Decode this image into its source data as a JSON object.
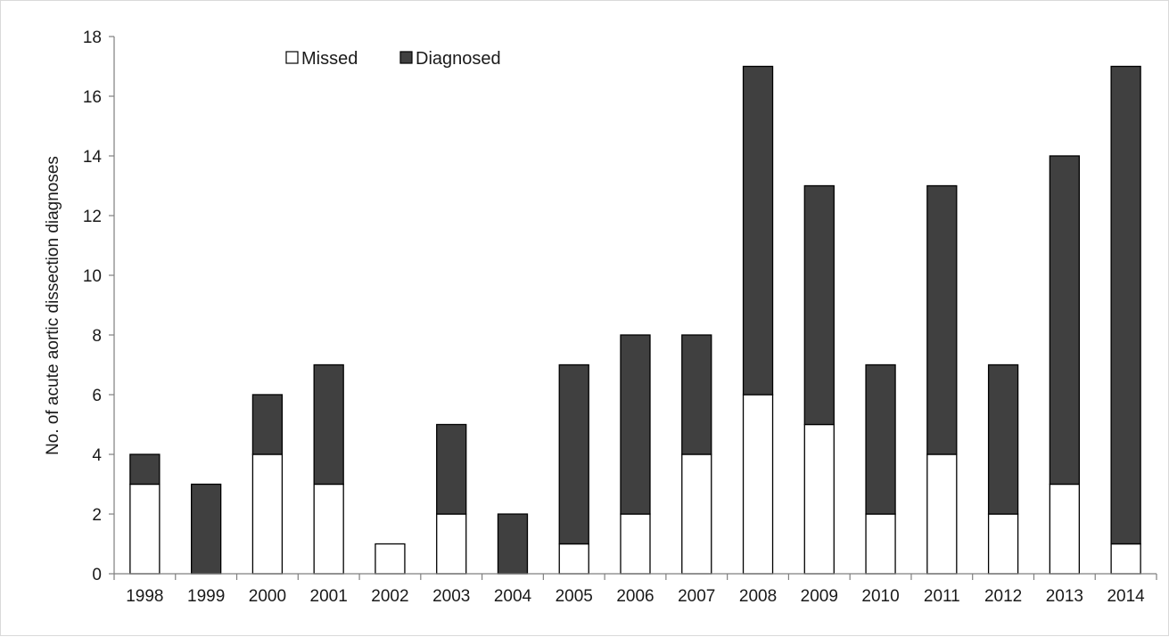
{
  "chart_data": {
    "type": "bar",
    "stacked": true,
    "title": "",
    "xlabel": "",
    "ylabel": "No. of acute aortic dissection diagnoses",
    "categories": [
      "1998",
      "1999",
      "2000",
      "2001",
      "2002",
      "2003",
      "2004",
      "2005",
      "2006",
      "2007",
      "2008",
      "2009",
      "2010",
      "2011",
      "2012",
      "2013",
      "2014"
    ],
    "series": [
      {
        "name": "Missed",
        "values": [
          3,
          0,
          4,
          3,
          1,
          2,
          0,
          1,
          2,
          4,
          6,
          5,
          2,
          4,
          2,
          3,
          1
        ],
        "color": "#ffffff"
      },
      {
        "name": "Diagnosed",
        "values": [
          1,
          3,
          2,
          4,
          0,
          3,
          2,
          6,
          6,
          4,
          11,
          8,
          5,
          9,
          5,
          11,
          16
        ],
        "color": "#404040"
      }
    ],
    "ylim": [
      0,
      18
    ],
    "yticks": [
      0,
      2,
      4,
      6,
      8,
      10,
      12,
      14,
      16,
      18
    ],
    "grid": false,
    "legend_position": "top-left"
  }
}
